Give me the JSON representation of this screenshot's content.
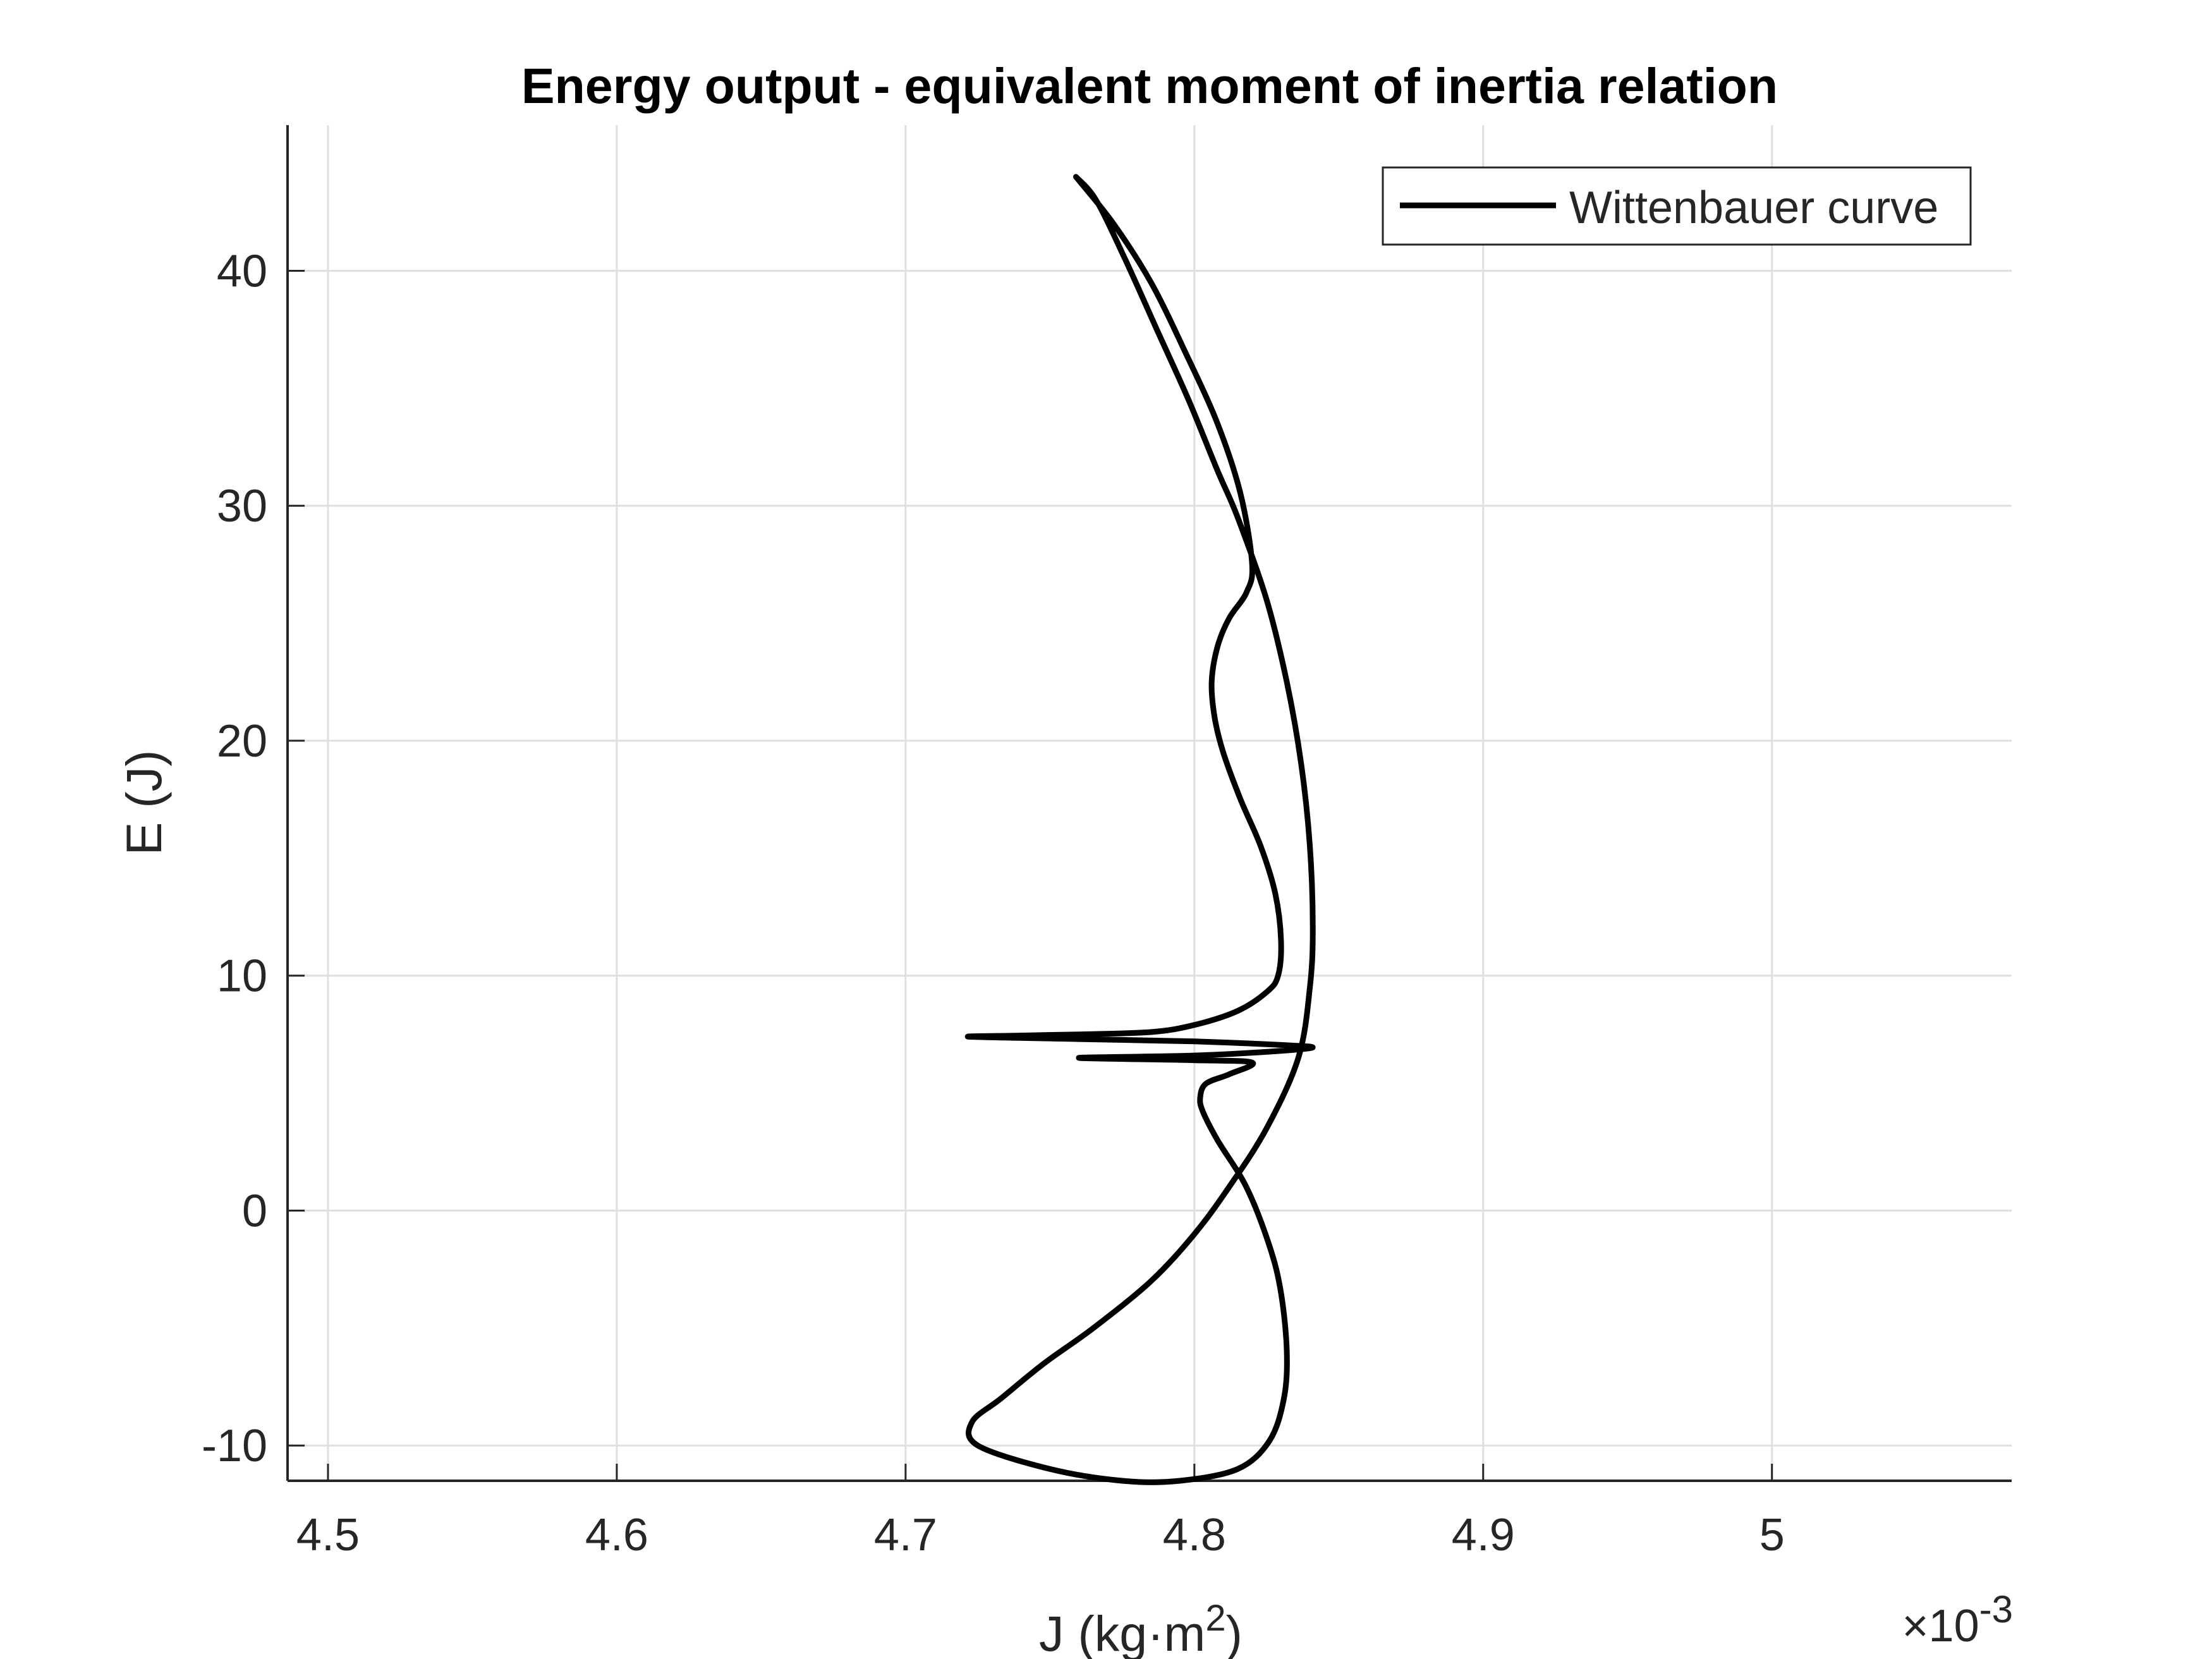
{
  "chart_data": {
    "type": "line",
    "title": "Energy output - equivalent moment of inertia relation",
    "xlabel": "J (kg·m",
    "xlabel_sup": "2",
    "xlabel_end": ")",
    "ylabel": "E (J)",
    "x_exponent_base": "×10",
    "x_exponent_power": "-3",
    "xlim": [
      4.486,
      5.083
    ],
    "ylim": [
      -11.5,
      46.2
    ],
    "x_tick_values": [
      4.5,
      4.6,
      4.7,
      4.8,
      4.9,
      5.0
    ],
    "x_tick_labels": [
      "4.5",
      "4.6",
      "4.7",
      "4.8",
      "4.9",
      "5"
    ],
    "y_tick_values": [
      -10,
      0,
      10,
      20,
      30,
      40
    ],
    "y_tick_labels": [
      "-10",
      "0",
      "10",
      "20",
      "30",
      "40"
    ],
    "grid": true,
    "legend_position": "top-right",
    "series": [
      {
        "name": "Wittenbauer curve",
        "color": "#000000",
        "x": [
          4.759,
          4.772,
          4.785,
          4.797,
          4.808,
          4.816,
          4.82,
          4.818,
          4.812,
          4.808,
          4.806,
          4.807,
          4.81,
          4.816,
          4.823,
          4.828,
          4.83,
          4.829,
          4.825,
          4.815,
          4.8,
          4.785,
          4.76,
          4.74,
          4.722,
          4.76,
          4.8,
          4.83,
          4.841,
          4.83,
          4.8,
          4.76,
          4.8,
          4.82,
          4.812,
          4.804,
          4.802,
          4.803,
          4.808,
          4.818,
          4.826,
          4.83,
          4.832,
          4.831,
          4.826,
          4.815,
          4.795,
          4.775,
          4.75,
          4.725,
          4.723,
          4.733,
          4.748,
          4.765,
          4.785,
          4.8,
          4.812,
          4.825,
          4.836,
          4.84,
          4.841,
          4.84,
          4.837,
          4.832,
          4.825,
          4.815,
          4.808,
          4.798,
          4.787,
          4.776,
          4.766,
          4.759
        ],
        "y": [
          44.0,
          42.0,
          39.5,
          36.5,
          33.5,
          30.5,
          27.5,
          26.3,
          25.2,
          24.0,
          22.5,
          21.0,
          19.5,
          17.5,
          15.5,
          13.5,
          11.5,
          10.0,
          9.3,
          8.5,
          7.9,
          7.6,
          7.5,
          7.45,
          7.4,
          7.3,
          7.2,
          7.05,
          6.95,
          6.8,
          6.6,
          6.5,
          6.4,
          6.3,
          5.8,
          5.4,
          4.8,
          4.2,
          3.0,
          1.0,
          -1.5,
          -3.5,
          -6.0,
          -8.0,
          -9.8,
          -11.0,
          -11.5,
          -11.5,
          -11.0,
          -10.0,
          -9.0,
          -8.0,
          -6.5,
          -5.0,
          -3.0,
          -1.0,
          1.0,
          3.5,
          6.5,
          9.5,
          12.0,
          15.5,
          19.0,
          22.5,
          26.0,
          29.5,
          31.5,
          34.5,
          37.5,
          40.5,
          43.0,
          44.0
        ]
      }
    ]
  }
}
